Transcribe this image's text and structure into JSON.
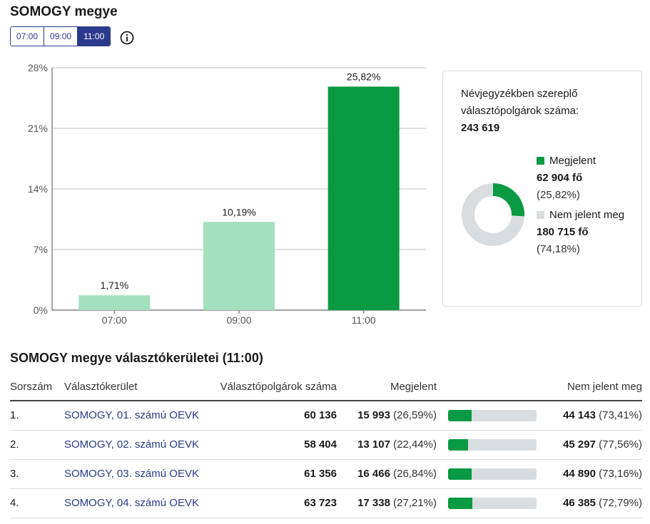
{
  "page": {
    "title": "SOMOGY megye",
    "time_tabs": [
      {
        "label": "07:00",
        "active": false
      },
      {
        "label": "09:00",
        "active": false
      },
      {
        "label": "11:00",
        "active": true
      }
    ],
    "info_icon": "info-icon"
  },
  "chart_data": {
    "type": "bar",
    "categories": [
      "07:00",
      "09:00",
      "11:00"
    ],
    "values": [
      1.71,
      10.19,
      25.82
    ],
    "value_labels": [
      "1,71%",
      "10,19%",
      "25,82%"
    ],
    "y_ticks": [
      0,
      7,
      14,
      21,
      28
    ],
    "y_tick_labels": [
      "0%",
      "7%",
      "14%",
      "21%",
      "28%"
    ],
    "ylim": [
      0,
      28
    ],
    "grid": true,
    "highlight_index": 2,
    "colors": {
      "normal": "#a3e0be",
      "highlight": "#0a9a43"
    }
  },
  "summary": {
    "label": "Névjegyzékben szereplő választópolgárok száma:",
    "total": "243 619",
    "appeared": {
      "label": "Megjelent",
      "count": "62 904 fő",
      "pct": "(25,82%)",
      "fraction": 0.2582,
      "color": "#0a9a43"
    },
    "not_appeared": {
      "label": "Nem jelent meg",
      "count": "180 715 fő",
      "pct": "(74,18%)",
      "color": "#d9dde0"
    }
  },
  "districts": {
    "title": "SOMOGY megye választókerületei (11:00)",
    "headers": {
      "no": "Sorszám",
      "name": "Választókerület",
      "voters": "Választópolgárok száma",
      "turnout": "Megjelent",
      "not": "Nem jelent meg"
    },
    "rows": [
      {
        "no": "1.",
        "name": "SOMOGY, 01. számú OEVK",
        "voters": "60 136",
        "turnout": "15 993",
        "turnout_pct": "(26,59%)",
        "fraction": 0.2659,
        "not": "44 143",
        "not_pct": "(73,41%)"
      },
      {
        "no": "2.",
        "name": "SOMOGY, 02. számú OEVK",
        "voters": "58 404",
        "turnout": "13 107",
        "turnout_pct": "(22,44%)",
        "fraction": 0.2244,
        "not": "45 297",
        "not_pct": "(77,56%)"
      },
      {
        "no": "3.",
        "name": "SOMOGY, 03. számú OEVK",
        "voters": "61 356",
        "turnout": "16 466",
        "turnout_pct": "(26,84%)",
        "fraction": 0.2684,
        "not": "44 890",
        "not_pct": "(73,16%)"
      },
      {
        "no": "4.",
        "name": "SOMOGY, 04. számú OEVK",
        "voters": "63 723",
        "turnout": "17 338",
        "turnout_pct": "(27,21%)",
        "fraction": 0.2721,
        "not": "46 385",
        "not_pct": "(72,79%)"
      }
    ]
  }
}
